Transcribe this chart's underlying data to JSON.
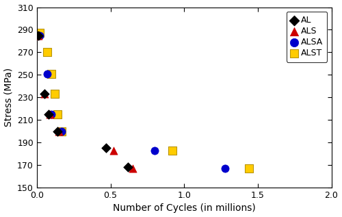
{
  "xlabel": "Number of Cycles (in millions)",
  "ylabel": "Stress (MPa)",
  "xlim": [
    0,
    2
  ],
  "ylim": [
    150,
    310
  ],
  "yticks": [
    150,
    170,
    190,
    210,
    230,
    250,
    270,
    290,
    310
  ],
  "xticks": [
    0,
    0.5,
    1.0,
    1.5,
    2.0
  ],
  "AL": {
    "x": [
      0.01,
      0.05,
      0.08,
      0.14,
      0.47,
      0.62
    ],
    "y": [
      285,
      233,
      215,
      200,
      185,
      168
    ],
    "color": "#000000",
    "marker": "D",
    "s": 48
  },
  "ALS": {
    "x": [
      0.01,
      0.05,
      0.09,
      0.15,
      0.52,
      0.65
    ],
    "y": [
      285,
      233,
      215,
      200,
      183,
      167
    ],
    "color": "#cc0000",
    "marker": "^",
    "s": 65
  },
  "ALSA": {
    "x": [
      0.02,
      0.07,
      0.1,
      0.17,
      0.8,
      1.28
    ],
    "y": [
      285,
      251,
      215,
      200,
      183,
      167
    ],
    "color": "#0000cc",
    "marker": "o",
    "s": 65
  },
  "ALST": {
    "x": [
      0.02,
      0.07,
      0.1,
      0.12,
      0.14,
      0.17,
      0.92,
      1.44
    ],
    "y": [
      287,
      270,
      251,
      233,
      215,
      200,
      183,
      167
    ],
    "color": "#ffcc00",
    "marker": "s",
    "s": 65,
    "edgecolor": "#b8950a"
  },
  "legend_loc": "upper right",
  "xlabel_fontsize": 10,
  "ylabel_fontsize": 10,
  "tick_fontsize": 9,
  "legend_fontsize": 9,
  "background_color": "#ffffff"
}
